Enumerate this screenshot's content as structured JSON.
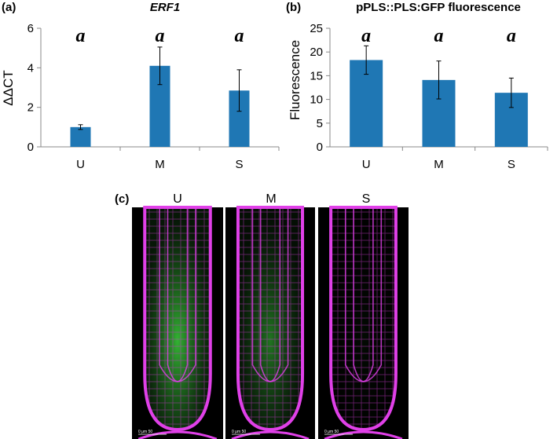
{
  "colors": {
    "bar": "#1f77b4",
    "axis": "#888888",
    "membrane": "#e040e8",
    "gfp": "#3cd23c",
    "background_micro": "#000000"
  },
  "chart_data": [
    {
      "type": "bar",
      "panel_label": "(a)",
      "title": "ERF1",
      "title_italic": true,
      "xlabel": "",
      "ylabel": "ΔΔCT",
      "categories": [
        "U",
        "M",
        "S"
      ],
      "values": [
        1.0,
        4.1,
        2.85
      ],
      "error": [
        0.12,
        0.95,
        1.05
      ],
      "significance": [
        "a",
        "a",
        "a"
      ],
      "ylim": [
        0,
        6
      ],
      "yticks": [
        0,
        2,
        4,
        6
      ],
      "grid": false
    },
    {
      "type": "bar",
      "panel_label": "(b)",
      "title": "pPLS::PLS:GFP fluorescence",
      "title_italic": false,
      "xlabel": "",
      "ylabel": "Fluorescence",
      "categories": [
        "U",
        "M",
        "S"
      ],
      "values": [
        18.3,
        14.1,
        11.4
      ],
      "error": [
        3.0,
        4.0,
        3.1
      ],
      "significance": [
        "a",
        "a",
        "a"
      ],
      "ylim": [
        0,
        25
      ],
      "yticks": [
        0,
        5,
        10,
        15,
        20,
        25
      ],
      "grid": false
    }
  ],
  "micrographs": {
    "panel_label": "(c)",
    "panels": [
      {
        "label": "U",
        "gfp_level": 0.85,
        "scale_text": "0   μm   50"
      },
      {
        "label": "M",
        "gfp_level": 0.55,
        "scale_text": "0   μm   50"
      },
      {
        "label": "S",
        "gfp_level": 0.05,
        "scale_text": "0   μm   50"
      }
    ]
  }
}
